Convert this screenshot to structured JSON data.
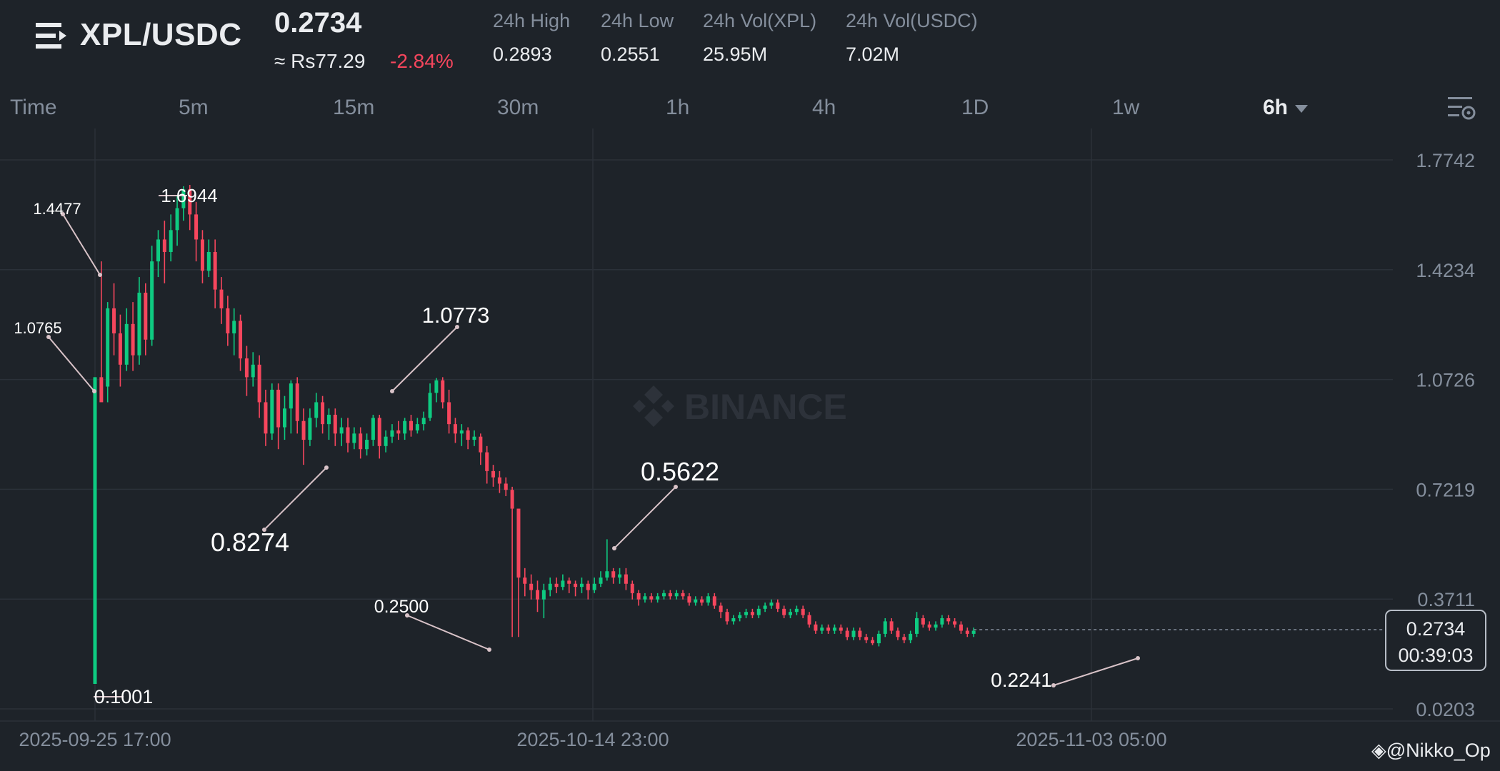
{
  "header": {
    "pair": "XPL/USDC",
    "last_price": "0.2734",
    "fiat_price": "≈ Rs77.29",
    "change_pct": "-2.84%",
    "stats": [
      {
        "label": "24h High",
        "value": "0.2893"
      },
      {
        "label": "24h Low",
        "value": "0.2551"
      },
      {
        "label": "24h Vol(XPL)",
        "value": "25.95M"
      },
      {
        "label": "24h Vol(USDC)",
        "value": "7.02M"
      }
    ]
  },
  "tabs": [
    "Time",
    "5m",
    "15m",
    "30m",
    "1h",
    "4h",
    "1D",
    "1w",
    "6h"
  ],
  "active_tab": "6h",
  "watermark": "BINANCE",
  "credit": "@Nikko_Op",
  "colors": {
    "up": "#0ecb81",
    "down": "#f6465d",
    "background": "#1e2329",
    "grid": "#2b3139",
    "muted": "#848e9c"
  },
  "chart_data": {
    "type": "candlestick",
    "y_ticks": [
      "1.7742",
      "1.4234",
      "1.0726",
      "0.7219",
      "0.3711",
      "0.0203"
    ],
    "ylim": [
      0.0203,
      1.7742
    ],
    "x_ticks": [
      "2025-09-25 17:00",
      "2025-10-14 23:00",
      "2025-11-03 05:00"
    ],
    "current_price": "0.2734",
    "countdown": "00:39:03",
    "annotations": [
      "1.4477",
      "1.6944",
      "1.0765",
      "0.1001",
      "1.0773",
      "0.8274",
      "0.5622",
      "0.2500",
      "0.2241"
    ],
    "candles": [
      [
        0.1001,
        1.08,
        0.1001,
        1.08
      ],
      [
        1.08,
        1.0,
        1.45,
        1.05
      ],
      [
        1.05,
        1.3,
        1.32,
        1.0
      ],
      [
        1.3,
        1.22,
        1.38,
        1.15
      ],
      [
        1.22,
        1.12,
        1.28,
        1.05
      ],
      [
        1.12,
        1.25,
        1.3,
        1.1
      ],
      [
        1.25,
        1.15,
        1.32,
        1.1
      ],
      [
        1.15,
        1.35,
        1.4,
        1.12
      ],
      [
        1.35,
        1.2,
        1.38,
        1.15
      ],
      [
        1.2,
        1.45,
        1.5,
        1.18
      ],
      [
        1.45,
        1.52,
        1.55,
        1.4
      ],
      [
        1.52,
        1.48,
        1.58,
        1.38
      ],
      [
        1.48,
        1.55,
        1.6,
        1.45
      ],
      [
        1.55,
        1.62,
        1.66,
        1.5
      ],
      [
        1.62,
        1.68,
        1.69,
        1.58
      ],
      [
        1.68,
        1.6,
        1.6944,
        1.55
      ],
      [
        1.6,
        1.52,
        1.64,
        1.45
      ],
      [
        1.52,
        1.42,
        1.55,
        1.38
      ],
      [
        1.42,
        1.48,
        1.52,
        1.4
      ],
      [
        1.48,
        1.36,
        1.52,
        1.3
      ],
      [
        1.36,
        1.3,
        1.4,
        1.25
      ],
      [
        1.3,
        1.22,
        1.34,
        1.18
      ],
      [
        1.22,
        1.26,
        1.3,
        1.15
      ],
      [
        1.26,
        1.14,
        1.28,
        1.1
      ],
      [
        1.14,
        1.08,
        1.18,
        1.02
      ],
      [
        1.08,
        1.12,
        1.16,
        1.05
      ],
      [
        1.12,
        1.0,
        1.15,
        0.95
      ],
      [
        1.0,
        0.9,
        1.04,
        0.86
      ],
      [
        0.9,
        1.04,
        1.06,
        0.88
      ],
      [
        1.04,
        0.92,
        1.06,
        0.85
      ],
      [
        0.92,
        0.98,
        1.02,
        0.88
      ],
      [
        0.98,
        1.06,
        1.07,
        0.9
      ],
      [
        1.06,
        0.94,
        1.08,
        0.9
      ],
      [
        0.94,
        0.88,
        0.98,
        0.8
      ],
      [
        0.88,
        0.95,
        0.98,
        0.86
      ],
      [
        0.95,
        1.0,
        1.03,
        0.92
      ],
      [
        1.0,
        0.93,
        1.02,
        0.9
      ],
      [
        0.93,
        0.96,
        0.98,
        0.88
      ],
      [
        0.96,
        0.9,
        0.98,
        0.86
      ],
      [
        0.9,
        0.92,
        0.95,
        0.86
      ],
      [
        0.92,
        0.87,
        0.95,
        0.84
      ],
      [
        0.87,
        0.9,
        0.92,
        0.85
      ],
      [
        0.9,
        0.85,
        0.92,
        0.82
      ],
      [
        0.85,
        0.88,
        0.9,
        0.83
      ],
      [
        0.88,
        0.95,
        0.96,
        0.86
      ],
      [
        0.95,
        0.86,
        0.96,
        0.82
      ],
      [
        0.86,
        0.89,
        0.91,
        0.84
      ],
      [
        0.89,
        0.91,
        0.93,
        0.87
      ],
      [
        0.91,
        0.9,
        0.94,
        0.88
      ],
      [
        0.9,
        0.94,
        0.95,
        0.88
      ],
      [
        0.94,
        0.91,
        0.96,
        0.89
      ],
      [
        0.91,
        0.93,
        0.95,
        0.9
      ],
      [
        0.93,
        0.95,
        0.97,
        0.91
      ],
      [
        0.95,
        1.03,
        1.06,
        0.94
      ],
      [
        1.03,
        1.07,
        1.0773,
        1.0
      ],
      [
        1.07,
        1.0,
        1.08,
        0.98
      ],
      [
        1.0,
        0.93,
        1.04,
        0.9
      ],
      [
        0.93,
        0.9,
        0.95,
        0.87
      ],
      [
        0.9,
        0.91,
        0.93,
        0.86
      ],
      [
        0.91,
        0.88,
        0.92,
        0.85
      ],
      [
        0.88,
        0.89,
        0.91,
        0.86
      ],
      [
        0.89,
        0.84,
        0.9,
        0.8
      ],
      [
        0.84,
        0.78,
        0.86,
        0.74
      ],
      [
        0.78,
        0.76,
        0.8,
        0.73
      ],
      [
        0.76,
        0.74,
        0.78,
        0.71
      ],
      [
        0.74,
        0.72,
        0.76,
        0.7
      ],
      [
        0.72,
        0.66,
        0.73,
        0.25
      ],
      [
        0.66,
        0.44,
        0.66,
        0.25
      ],
      [
        0.44,
        0.42,
        0.47,
        0.38
      ],
      [
        0.42,
        0.4,
        0.45,
        0.37
      ],
      [
        0.4,
        0.37,
        0.43,
        0.33
      ],
      [
        0.37,
        0.4,
        0.42,
        0.31
      ],
      [
        0.4,
        0.42,
        0.44,
        0.38
      ],
      [
        0.42,
        0.41,
        0.44,
        0.39
      ],
      [
        0.41,
        0.43,
        0.45,
        0.4
      ],
      [
        0.43,
        0.42,
        0.44,
        0.39
      ],
      [
        0.42,
        0.41,
        0.43,
        0.38
      ],
      [
        0.41,
        0.42,
        0.44,
        0.39
      ],
      [
        0.42,
        0.4,
        0.43,
        0.37
      ],
      [
        0.4,
        0.42,
        0.44,
        0.39
      ],
      [
        0.42,
        0.44,
        0.46,
        0.41
      ],
      [
        0.44,
        0.46,
        0.5622,
        0.43
      ],
      [
        0.46,
        0.44,
        0.47,
        0.42
      ],
      [
        0.44,
        0.45,
        0.47,
        0.42
      ],
      [
        0.45,
        0.42,
        0.47,
        0.4
      ],
      [
        0.42,
        0.39,
        0.43,
        0.37
      ],
      [
        0.39,
        0.37,
        0.4,
        0.35
      ],
      [
        0.37,
        0.38,
        0.39,
        0.36
      ],
      [
        0.38,
        0.37,
        0.39,
        0.36
      ],
      [
        0.37,
        0.38,
        0.39,
        0.36
      ],
      [
        0.38,
        0.39,
        0.4,
        0.37
      ],
      [
        0.39,
        0.38,
        0.4,
        0.37
      ],
      [
        0.38,
        0.39,
        0.4,
        0.37
      ],
      [
        0.39,
        0.38,
        0.4,
        0.37
      ],
      [
        0.38,
        0.36,
        0.39,
        0.35
      ],
      [
        0.36,
        0.37,
        0.38,
        0.35
      ],
      [
        0.37,
        0.36,
        0.38,
        0.35
      ],
      [
        0.36,
        0.38,
        0.39,
        0.35
      ],
      [
        0.38,
        0.35,
        0.39,
        0.34
      ],
      [
        0.35,
        0.33,
        0.36,
        0.31
      ],
      [
        0.33,
        0.3,
        0.34,
        0.29
      ],
      [
        0.3,
        0.31,
        0.32,
        0.29
      ],
      [
        0.31,
        0.32,
        0.33,
        0.3
      ],
      [
        0.32,
        0.33,
        0.34,
        0.31
      ],
      [
        0.33,
        0.32,
        0.34,
        0.31
      ],
      [
        0.32,
        0.34,
        0.35,
        0.31
      ],
      [
        0.34,
        0.35,
        0.36,
        0.33
      ],
      [
        0.35,
        0.36,
        0.37,
        0.34
      ],
      [
        0.36,
        0.34,
        0.37,
        0.33
      ],
      [
        0.34,
        0.32,
        0.35,
        0.31
      ],
      [
        0.32,
        0.33,
        0.34,
        0.31
      ],
      [
        0.33,
        0.34,
        0.35,
        0.32
      ],
      [
        0.34,
        0.32,
        0.35,
        0.31
      ],
      [
        0.32,
        0.29,
        0.33,
        0.28
      ],
      [
        0.29,
        0.27,
        0.3,
        0.26
      ],
      [
        0.27,
        0.28,
        0.29,
        0.26
      ],
      [
        0.28,
        0.27,
        0.29,
        0.26
      ],
      [
        0.27,
        0.28,
        0.29,
        0.26
      ],
      [
        0.28,
        0.27,
        0.29,
        0.26
      ],
      [
        0.27,
        0.25,
        0.28,
        0.24
      ],
      [
        0.25,
        0.27,
        0.28,
        0.24
      ],
      [
        0.27,
        0.25,
        0.28,
        0.24
      ],
      [
        0.25,
        0.24,
        0.26,
        0.23
      ],
      [
        0.24,
        0.23,
        0.25,
        0.2241
      ],
      [
        0.23,
        0.26,
        0.27,
        0.22
      ],
      [
        0.26,
        0.3,
        0.31,
        0.25
      ],
      [
        0.3,
        0.27,
        0.31,
        0.26
      ],
      [
        0.27,
        0.25,
        0.28,
        0.24
      ],
      [
        0.25,
        0.24,
        0.26,
        0.23
      ],
      [
        0.24,
        0.26,
        0.27,
        0.23
      ],
      [
        0.26,
        0.31,
        0.33,
        0.25
      ],
      [
        0.31,
        0.29,
        0.32,
        0.28
      ],
      [
        0.29,
        0.28,
        0.3,
        0.27
      ],
      [
        0.28,
        0.29,
        0.3,
        0.27
      ],
      [
        0.29,
        0.31,
        0.32,
        0.28
      ],
      [
        0.31,
        0.3,
        0.32,
        0.29
      ],
      [
        0.3,
        0.29,
        0.31,
        0.28
      ],
      [
        0.29,
        0.27,
        0.3,
        0.26
      ],
      [
        0.27,
        0.26,
        0.28,
        0.25
      ],
      [
        0.26,
        0.27,
        0.28,
        0.25
      ]
    ]
  }
}
